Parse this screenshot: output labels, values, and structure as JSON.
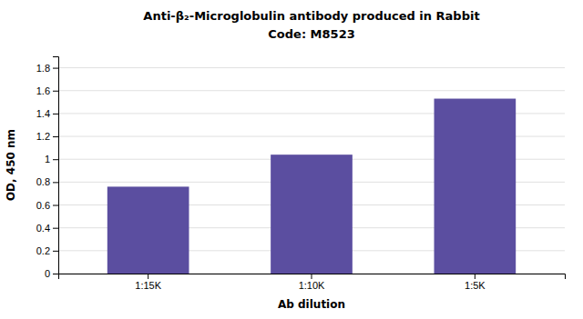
{
  "chart_data": {
    "type": "bar",
    "title": "Anti-β₂-Microglobulin antibody produced in Rabbit",
    "subtitle": "Code: M8523",
    "xlabel": "Ab dilution",
    "ylabel": "OD, 450 nm",
    "categories": [
      "1:15K",
      "1:10K",
      "1:5K"
    ],
    "values": [
      0.76,
      1.04,
      1.53
    ],
    "color": "#5B4EA0",
    "ylim": [
      0,
      1.9
    ],
    "yticks": [
      0,
      0.2,
      0.4,
      0.6,
      0.8,
      1,
      1.2,
      1.4,
      1.6,
      1.8
    ],
    "grid": true
  }
}
